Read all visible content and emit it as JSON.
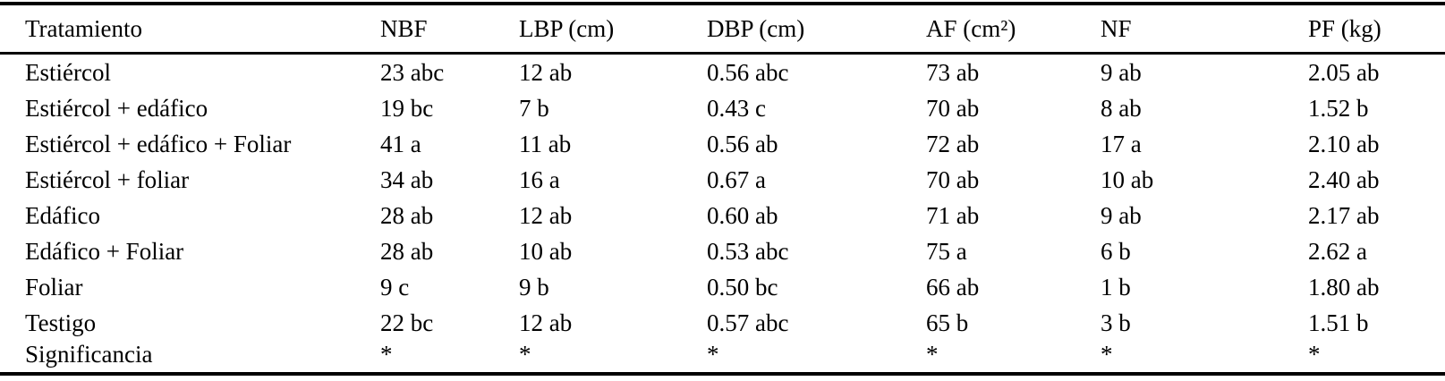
{
  "table": {
    "columns": [
      {
        "key": "tratamiento",
        "label": "Tratamiento"
      },
      {
        "key": "nbf",
        "label": "NBF"
      },
      {
        "key": "lbp",
        "label": "LBP (cm)"
      },
      {
        "key": "dbp",
        "label": "DBP (cm)"
      },
      {
        "key": "af",
        "label": "AF (cm²)"
      },
      {
        "key": "nf",
        "label": "NF"
      },
      {
        "key": "pf",
        "label": "PF (kg)"
      }
    ],
    "rows": [
      [
        "Estiércol",
        "23 abc",
        "12 ab",
        "0.56 abc",
        "73 ab",
        "9 ab",
        "2.05 ab"
      ],
      [
        "Estiércol + edáfico",
        "19 bc",
        "7 b",
        "0.43 c",
        "70 ab",
        "8 ab",
        "1.52 b"
      ],
      [
        "Estiércol + edáfico + Foliar",
        "41 a",
        "11 ab",
        "0.56 ab",
        "72 ab",
        "17 a",
        "2.10 ab"
      ],
      [
        "Estiércol + foliar",
        "34 ab",
        "16 a",
        "0.67 a",
        "70 ab",
        "10 ab",
        "2.40 ab"
      ],
      [
        "Edáfico",
        "28 ab",
        "12 ab",
        "0.60 ab",
        "71 ab",
        "9 ab",
        "2.17 ab"
      ],
      [
        "Edáfico + Foliar",
        "28 ab",
        "10 ab",
        "0.53 abc",
        "75 a",
        "6 b",
        "2.62 a"
      ],
      [
        "Foliar",
        "9 c",
        "9 b",
        "0.50 bc",
        "66 ab",
        "1 b",
        "1.80 ab"
      ],
      [
        "Testigo",
        "22 bc",
        "12 ab",
        "0.57 abc",
        "65 b",
        "3 b",
        "1.51 b"
      ],
      [
        "Significancia",
        "*",
        "*",
        "*",
        "*",
        "*",
        "*"
      ]
    ]
  },
  "colors": {
    "text": "#000000",
    "background": "#ffffff",
    "rule": "#000000"
  }
}
